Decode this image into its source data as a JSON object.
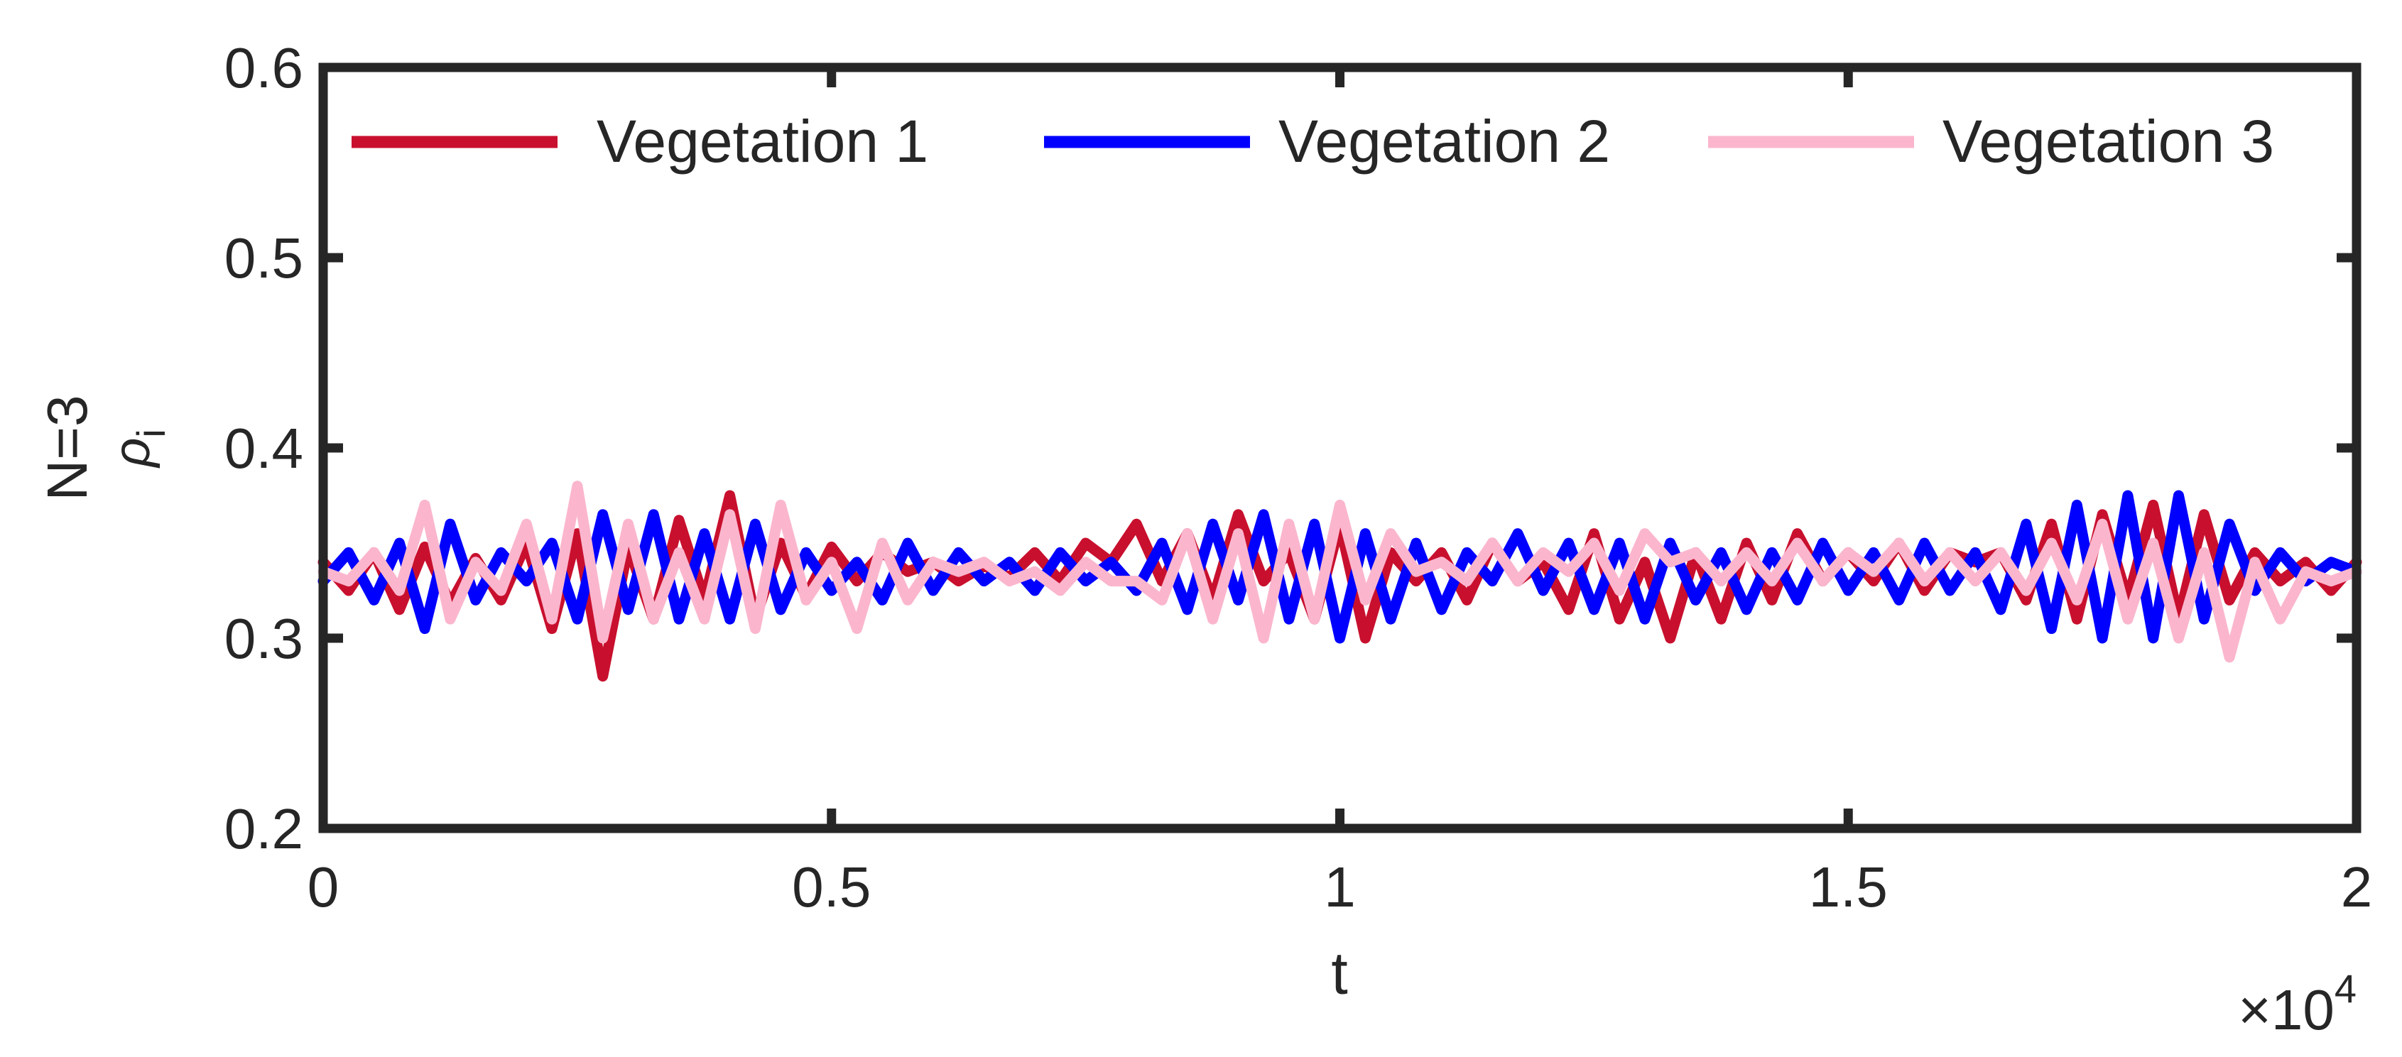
{
  "chart_data": {
    "type": "line",
    "title": "",
    "xlabel": "t",
    "ylabel_prefix": "N=3",
    "ylabel_symbol": "ρ",
    "ylabel_subscript": "i",
    "x_exponent_label": "×10",
    "x_exponent_power": "4",
    "x_scale_factor": 10000,
    "xlim": [
      0,
      2
    ],
    "ylim": [
      0.2,
      0.6
    ],
    "xticks": [
      0,
      0.5,
      1,
      1.5,
      2
    ],
    "xtick_labels": [
      "0",
      "0.5",
      "1",
      "1.5",
      "2"
    ],
    "yticks": [
      0.2,
      0.3,
      0.4,
      0.5,
      0.6
    ],
    "ytick_labels": [
      "0.2",
      "0.3",
      "0.4",
      "0.5",
      "0.6"
    ],
    "grid": false,
    "legend_position": "top",
    "x": [
      0,
      0.025,
      0.05,
      0.075,
      0.1,
      0.125,
      0.15,
      0.175,
      0.2,
      0.225,
      0.25,
      0.275,
      0.3,
      0.325,
      0.35,
      0.375,
      0.4,
      0.425,
      0.45,
      0.475,
      0.5,
      0.525,
      0.55,
      0.575,
      0.6,
      0.625,
      0.65,
      0.675,
      0.7,
      0.725,
      0.75,
      0.775,
      0.8,
      0.825,
      0.85,
      0.875,
      0.9,
      0.925,
      0.95,
      0.975,
      1,
      1.025,
      1.05,
      1.075,
      1.1,
      1.125,
      1.15,
      1.175,
      1.2,
      1.225,
      1.25,
      1.275,
      1.3,
      1.325,
      1.35,
      1.375,
      1.4,
      1.425,
      1.45,
      1.475,
      1.5,
      1.525,
      1.55,
      1.575,
      1.6,
      1.625,
      1.65,
      1.675,
      1.7,
      1.725,
      1.75,
      1.775,
      1.8,
      1.825,
      1.85,
      1.875,
      1.9,
      1.925,
      1.95,
      1.975,
      2
    ],
    "series": [
      {
        "name": "Vegetation 1",
        "color": "#C8102E",
        "values": [
          0.34,
          0.325,
          0.345,
          0.315,
          0.348,
          0.318,
          0.342,
          0.32,
          0.35,
          0.305,
          0.355,
          0.28,
          0.348,
          0.31,
          0.362,
          0.32,
          0.375,
          0.31,
          0.35,
          0.322,
          0.348,
          0.33,
          0.345,
          0.335,
          0.34,
          0.33,
          0.338,
          0.332,
          0.345,
          0.33,
          0.35,
          0.34,
          0.36,
          0.33,
          0.355,
          0.32,
          0.365,
          0.33,
          0.345,
          0.31,
          0.36,
          0.3,
          0.345,
          0.33,
          0.345,
          0.32,
          0.35,
          0.33,
          0.34,
          0.315,
          0.355,
          0.31,
          0.34,
          0.3,
          0.345,
          0.31,
          0.35,
          0.32,
          0.355,
          0.33,
          0.345,
          0.33,
          0.35,
          0.325,
          0.345,
          0.34,
          0.345,
          0.32,
          0.36,
          0.31,
          0.365,
          0.32,
          0.37,
          0.31,
          0.365,
          0.32,
          0.345,
          0.33,
          0.34,
          0.325,
          0.34
        ]
      },
      {
        "name": "Vegetation 2",
        "color": "#0000FF",
        "values": [
          0.33,
          0.345,
          0.32,
          0.35,
          0.305,
          0.36,
          0.32,
          0.345,
          0.33,
          0.35,
          0.31,
          0.365,
          0.315,
          0.365,
          0.31,
          0.355,
          0.31,
          0.36,
          0.315,
          0.345,
          0.325,
          0.34,
          0.32,
          0.35,
          0.325,
          0.345,
          0.33,
          0.34,
          0.325,
          0.345,
          0.33,
          0.34,
          0.325,
          0.35,
          0.315,
          0.36,
          0.32,
          0.365,
          0.31,
          0.36,
          0.3,
          0.355,
          0.31,
          0.35,
          0.315,
          0.345,
          0.33,
          0.355,
          0.325,
          0.35,
          0.315,
          0.35,
          0.31,
          0.35,
          0.32,
          0.345,
          0.315,
          0.345,
          0.32,
          0.35,
          0.325,
          0.345,
          0.32,
          0.35,
          0.325,
          0.345,
          0.315,
          0.36,
          0.305,
          0.37,
          0.3,
          0.375,
          0.3,
          0.375,
          0.31,
          0.36,
          0.325,
          0.345,
          0.33,
          0.34,
          0.335
        ]
      },
      {
        "name": "Vegetation 3",
        "color": "#FBB6CE",
        "values": [
          0.335,
          0.33,
          0.345,
          0.325,
          0.37,
          0.31,
          0.34,
          0.325,
          0.36,
          0.31,
          0.38,
          0.3,
          0.36,
          0.31,
          0.345,
          0.31,
          0.365,
          0.305,
          0.37,
          0.32,
          0.34,
          0.305,
          0.35,
          0.32,
          0.34,
          0.335,
          0.34,
          0.33,
          0.335,
          0.325,
          0.34,
          0.33,
          0.33,
          0.32,
          0.355,
          0.31,
          0.355,
          0.3,
          0.36,
          0.31,
          0.37,
          0.32,
          0.355,
          0.335,
          0.34,
          0.33,
          0.35,
          0.33,
          0.345,
          0.335,
          0.35,
          0.325,
          0.355,
          0.34,
          0.345,
          0.33,
          0.345,
          0.33,
          0.35,
          0.33,
          0.345,
          0.335,
          0.35,
          0.33,
          0.345,
          0.33,
          0.345,
          0.325,
          0.35,
          0.32,
          0.36,
          0.31,
          0.35,
          0.3,
          0.345,
          0.29,
          0.34,
          0.31,
          0.335,
          0.33,
          0.335
        ]
      }
    ]
  },
  "colors": {
    "axis": "#262626",
    "background": "#FFFFFF"
  }
}
